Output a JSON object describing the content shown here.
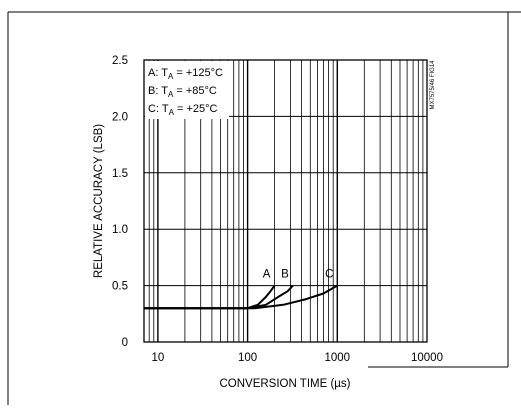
{
  "chart_data": {
    "type": "line",
    "xscale": "log",
    "xlabel": "CONVERSION TIME (µs)",
    "ylabel": "RELATIVE ACCURACY (LSB)",
    "xlim": [
      7,
      10000
    ],
    "ylim": [
      0,
      2.5
    ],
    "grid": true,
    "x_ticks": [
      10,
      100,
      1000,
      10000
    ],
    "x_tick_labels": [
      "10",
      "100",
      "1000",
      "10000"
    ],
    "y_ticks": [
      0,
      0.5,
      1.0,
      1.5,
      2.0,
      2.5
    ],
    "y_tick_labels": [
      "0",
      "0.5",
      "1.0",
      "1.5",
      "2.0",
      "2.5"
    ],
    "legend": {
      "placement": "top-left",
      "entries": [
        {
          "prefix": "A: T",
          "sub": "A",
          "suffix": " = +125°C"
        },
        {
          "prefix": "B: T",
          "sub": "A",
          "suffix": " = +85°C"
        },
        {
          "prefix": "C: T",
          "sub": "A",
          "suffix": " = +25°C"
        }
      ]
    },
    "figure_id": "MX7575/46 FIG14",
    "series": [
      {
        "name": "A",
        "x": [
          7,
          100,
          130,
          160,
          180,
          200
        ],
        "y": [
          0.3,
          0.3,
          0.33,
          0.4,
          0.45,
          0.5
        ]
      },
      {
        "name": "B",
        "x": [
          7,
          100,
          160,
          220,
          280,
          320
        ],
        "y": [
          0.3,
          0.3,
          0.33,
          0.4,
          0.45,
          0.5
        ]
      },
      {
        "name": "C",
        "x": [
          7,
          120,
          250,
          450,
          700,
          1000
        ],
        "y": [
          0.3,
          0.3,
          0.33,
          0.38,
          0.43,
          0.5
        ]
      }
    ]
  }
}
